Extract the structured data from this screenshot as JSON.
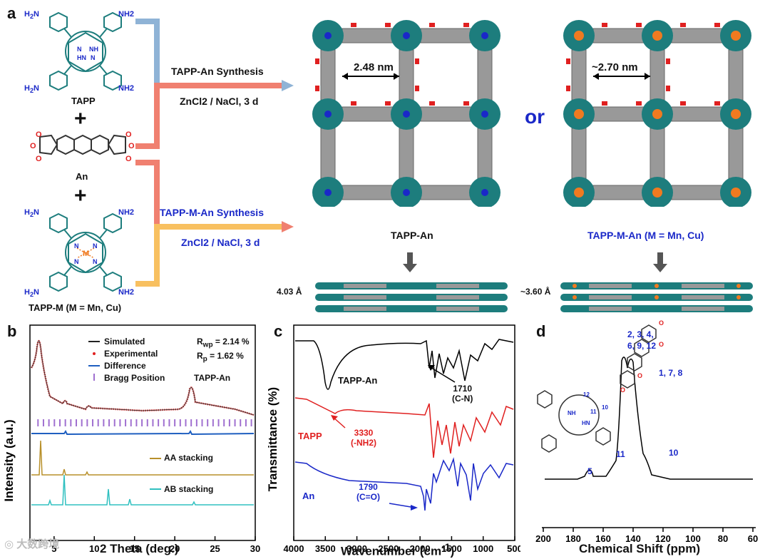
{
  "figure": {
    "panel_labels": {
      "a": "a",
      "b": "b",
      "c": "c",
      "d": "d"
    },
    "watermark": "大数跨境"
  },
  "panel_a": {
    "monomers": {
      "tapp": "TAPP",
      "an": "An",
      "tapp_m": "TAPP-M (M = Mn, Cu)"
    },
    "plus": "+",
    "substituent": "NH2",
    "metal": "M",
    "route_tapp_an": {
      "title": "TAPP-An Synthesis",
      "conditions": "ZnCl2 / NaCl, 3 d"
    },
    "route_tapp_m_an": {
      "title": "TAPP-M-An Synthesis",
      "conditions": "ZnCl2 / NaCl, 3 d"
    },
    "framework_left": {
      "pore": "2.48 nm",
      "name": "TAPP-An",
      "interlayer": "4.03 Å"
    },
    "or_text": "or",
    "framework_right": {
      "pore": "~2.70 nm",
      "name": "TAPP-M-An (M = Mn, Cu)",
      "interlayer": "~3.60 Å"
    },
    "colors": {
      "blue_arrow": "#8fb3d6",
      "red_arrow": "#f08070",
      "yellow_arrow": "#f8c060",
      "teal": "#1d7d7d",
      "red_o": "#e02020",
      "blue_label": "#1a28c8",
      "orange_metal": "#f07a20"
    }
  },
  "chart_data": [
    {
      "panel": "b",
      "type": "line",
      "xlabel": "2 Theta (deg.)",
      "ylabel": "Intensity (a.u.)",
      "xlim": [
        2,
        30
      ],
      "xticks": [
        "5",
        "10",
        "15",
        "20",
        "25",
        "30"
      ],
      "legend": [
        "Simulated",
        "Experimental",
        "Difference",
        "Bragg Position"
      ],
      "stats": {
        "rwp": "R",
        "rwp_sub": "wp",
        "rwp_val": " = 2.14 %",
        "rp": "R",
        "rp_sub": "p",
        "rp_val": " = 1.62 %"
      },
      "material": "TAPP-An",
      "stack_labels": {
        "aa": "AA stacking",
        "ab": "AB stacking"
      },
      "experimental_peaks_2theta": [
        3.0,
        5.9,
        8.9,
        21.6
      ],
      "aa_peaks_2theta": [
        3.0,
        5.9,
        8.9
      ],
      "ab_peaks_2theta": [
        4.2,
        5.9,
        11.2,
        14.0,
        22.0
      ]
    },
    {
      "panel": "c",
      "type": "line",
      "xlabel": "Wavenumber (cm-1)",
      "ylabel": "Transmittance (%)",
      "xlim": [
        4000,
        500
      ],
      "xticks": [
        "4000",
        "3500",
        "3000",
        "2500",
        "2000",
        "1500",
        "1000",
        "500"
      ],
      "series": [
        {
          "name": "TAPP-An",
          "color": "#000000",
          "annotation": "1710",
          "annotation2": "(C-N)"
        },
        {
          "name": "TAPP",
          "color": "#e02020",
          "annotation": "3330",
          "annotation2": "(-NH2)"
        },
        {
          "name": "An",
          "color": "#1a28c8",
          "annotation": "1790",
          "annotation2": "(C=O)"
        }
      ]
    },
    {
      "panel": "d",
      "type": "line",
      "xlabel": "Chemical Shift (ppm)",
      "xlim": [
        200,
        60
      ],
      "xticks": [
        "200",
        "180",
        "160",
        "140",
        "120",
        "100",
        "80",
        "60"
      ],
      "peaks_ppm": [
        {
          "ppm": 166,
          "label": "5"
        },
        {
          "ppm": 147,
          "label": "11"
        },
        {
          "ppm": 132,
          "label": "2, 3, 4,"
        },
        {
          "ppm": 132,
          "label": "6, 9, 12"
        },
        {
          "ppm": 127,
          "label": "1, 7, 8"
        },
        {
          "ppm": 116,
          "label": "10"
        }
      ]
    }
  ]
}
